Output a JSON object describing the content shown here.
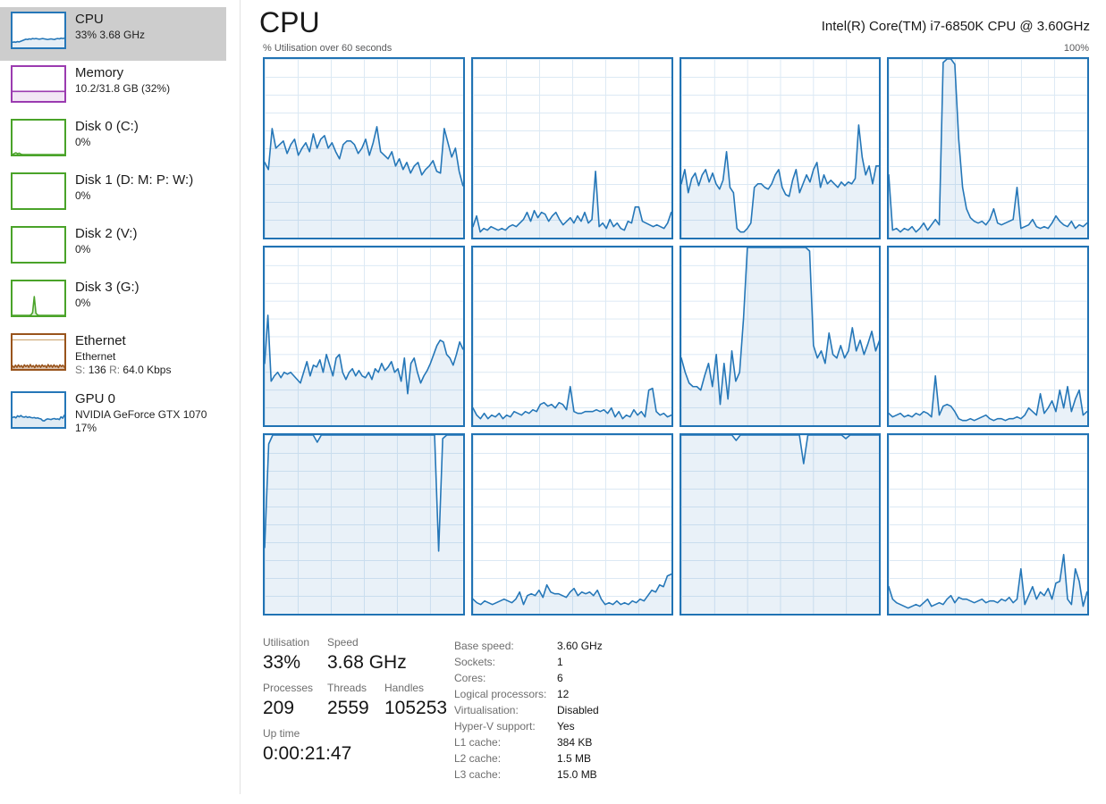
{
  "header": {
    "title": "CPU",
    "subtitle": "Intel(R) Core(TM) i7-6850K CPU @ 3.60GHz"
  },
  "axis": {
    "left_label": "% Utilisation over 60 seconds",
    "right_label": "100%"
  },
  "colors": {
    "chart_blue": "#2577b8",
    "memory_purple": "#9b3bb0",
    "disk_green": "#4aa329",
    "ethernet_brown": "#99541c",
    "ethernet_scale": "#c9a06a",
    "selected_bg": "#cdcdcd"
  },
  "sidebar": {
    "items": [
      {
        "label": "CPU",
        "sub1": "33% 3.68 GHz"
      },
      {
        "label": "Memory",
        "sub1": "10.2/31.8 GB (32%)"
      },
      {
        "label": "Disk 0 (C:)",
        "sub1": "0%"
      },
      {
        "label": "Disk 1 (D: M: P: W:)",
        "sub1": "0%"
      },
      {
        "label": "Disk 2 (V:)",
        "sub1": "0%"
      },
      {
        "label": "Disk 3 (G:)",
        "sub1": "0%"
      },
      {
        "label": "Ethernet",
        "sub1": "Ethernet",
        "throughput": {
          "s_label": "S:",
          "s_value": "136",
          "r_label": "R:",
          "r_value": "64.0 Kbps"
        }
      },
      {
        "label": "GPU 0",
        "sub1": "NVIDIA GeForce GTX 1070",
        "sub2": "17%"
      }
    ]
  },
  "thumbs": {
    "cpu": [
      15,
      16,
      15,
      17,
      16,
      18,
      20,
      22,
      24,
      23,
      25,
      24,
      26,
      25,
      26,
      25,
      24,
      25,
      26,
      25,
      24,
      23,
      24,
      25,
      24,
      23,
      25,
      26,
      25,
      27,
      26,
      27
    ],
    "memory": [
      28,
      28
    ],
    "disk0": [
      0,
      3,
      5,
      2,
      4,
      1,
      0,
      0,
      0,
      0,
      0,
      0,
      0,
      0,
      0,
      0,
      0,
      0,
      0,
      0,
      0,
      0,
      0,
      0,
      0,
      0,
      0,
      0,
      0,
      0,
      0,
      0
    ],
    "disk1": [],
    "disk2": [],
    "disk3": [
      0,
      0,
      0,
      0,
      0,
      0,
      0,
      0,
      0,
      0,
      0,
      1,
      8,
      55,
      6,
      1,
      0,
      0,
      0,
      0,
      0,
      0,
      0,
      0,
      0,
      0,
      0,
      0,
      0,
      0,
      0,
      0
    ],
    "ethernet": [
      9,
      4,
      11,
      5,
      12,
      6,
      10,
      4,
      12,
      7,
      11,
      5,
      13,
      6,
      10,
      4,
      12,
      6,
      11,
      5,
      12,
      7,
      10,
      4,
      13,
      6,
      11,
      5,
      12,
      6,
      10,
      4,
      12,
      7,
      11,
      5
    ],
    "gpu": [
      28,
      30,
      27,
      33,
      30,
      34,
      30,
      29,
      31,
      28,
      30,
      28,
      27,
      28,
      26,
      27,
      25,
      24,
      19,
      18,
      22,
      24,
      23,
      22,
      24,
      25,
      23,
      24,
      22,
      30,
      26,
      35
    ]
  },
  "chart_data": {
    "type": "area",
    "title": "% Utilisation over 60 seconds",
    "x_range_seconds": 60,
    "ylim": [
      0,
      100
    ],
    "grid": true,
    "series": [
      {
        "name": "Logical processor 0",
        "values": [
          42,
          38,
          61,
          50,
          52,
          54,
          47,
          52,
          55,
          46,
          50,
          53,
          48,
          58,
          50,
          55,
          57,
          50,
          53,
          48,
          44,
          52,
          54,
          54,
          52,
          47,
          50,
          55,
          46,
          53,
          62,
          48,
          46,
          44,
          48,
          40,
          44,
          38,
          42,
          36,
          40,
          42,
          35,
          38,
          40,
          43,
          37,
          36,
          61,
          53,
          45,
          50,
          37,
          29
        ]
      },
      {
        "name": "Logical processor 1",
        "values": [
          6,
          12,
          3,
          5,
          4,
          6,
          5,
          4,
          5,
          4,
          6,
          7,
          6,
          8,
          10,
          14,
          9,
          15,
          11,
          14,
          13,
          9,
          12,
          14,
          10,
          7,
          9,
          11,
          8,
          12,
          9,
          14,
          8,
          10,
          37,
          6,
          8,
          5,
          10,
          6,
          8,
          5,
          4,
          9,
          8,
          17,
          17,
          9,
          8,
          7,
          6,
          7,
          6,
          5,
          8,
          14
        ]
      },
      {
        "name": "Logical processor 2",
        "values": [
          30,
          38,
          25,
          33,
          36,
          29,
          35,
          38,
          31,
          36,
          30,
          27,
          32,
          48,
          28,
          25,
          5,
          3,
          3,
          5,
          8,
          28,
          30,
          30,
          28,
          27,
          30,
          35,
          38,
          28,
          24,
          23,
          32,
          38,
          25,
          30,
          35,
          31,
          38,
          42,
          28,
          35,
          30,
          32,
          30,
          28,
          31,
          29,
          31,
          30,
          33,
          63,
          45,
          35,
          40,
          30,
          40,
          40
        ]
      },
      {
        "name": "Logical processor 3",
        "values": [
          35,
          4,
          5,
          3,
          5,
          4,
          6,
          3,
          5,
          8,
          4,
          7,
          10,
          7,
          98,
          100,
          100,
          97,
          55,
          28,
          16,
          11,
          9,
          8,
          9,
          7,
          10,
          16,
          8,
          7,
          8,
          9,
          10,
          28,
          5,
          6,
          7,
          10,
          6,
          5,
          6,
          5,
          8,
          12,
          9,
          7,
          6,
          9,
          5,
          7,
          6,
          8
        ]
      },
      {
        "name": "Logical processor 4",
        "values": [
          35,
          62,
          25,
          28,
          30,
          27,
          30,
          29,
          30,
          28,
          26,
          24,
          30,
          36,
          28,
          34,
          33,
          37,
          30,
          40,
          34,
          28,
          38,
          40,
          30,
          26,
          30,
          32,
          28,
          31,
          28,
          27,
          30,
          26,
          32,
          30,
          35,
          31,
          33,
          36,
          30,
          32,
          25,
          38,
          18,
          35,
          38,
          30,
          24,
          28,
          31,
          35,
          40,
          45,
          48,
          47,
          40,
          38,
          34,
          40,
          47,
          43
        ]
      },
      {
        "name": "Logical processor 5",
        "values": [
          10,
          6,
          4,
          7,
          4,
          6,
          5,
          7,
          4,
          6,
          5,
          8,
          7,
          6,
          8,
          7,
          9,
          8,
          12,
          13,
          11,
          12,
          10,
          13,
          12,
          9,
          22,
          8,
          7,
          7,
          8,
          8,
          8,
          9,
          8,
          9,
          7,
          10,
          5,
          8,
          4,
          6,
          5,
          9,
          6,
          8,
          5,
          20,
          21,
          8,
          6,
          7,
          5,
          6
        ]
      },
      {
        "name": "Logical processor 6",
        "values": [
          38,
          30,
          24,
          22,
          22,
          20,
          28,
          35,
          22,
          40,
          12,
          35,
          15,
          42,
          25,
          30,
          60,
          100,
          100,
          100,
          100,
          100,
          100,
          100,
          100,
          100,
          100,
          100,
          100,
          100,
          100,
          100,
          100,
          98,
          45,
          38,
          42,
          35,
          52,
          40,
          38,
          45,
          38,
          42,
          55,
          42,
          48,
          40,
          46,
          53,
          42,
          48
        ]
      },
      {
        "name": "Logical processor 7",
        "values": [
          7,
          5,
          6,
          7,
          5,
          6,
          5,
          7,
          6,
          8,
          7,
          5,
          28,
          6,
          11,
          12,
          11,
          8,
          4,
          3,
          3,
          4,
          3,
          4,
          5,
          6,
          4,
          3,
          4,
          4,
          3,
          4,
          4,
          5,
          4,
          6,
          10,
          8,
          6,
          18,
          7,
          10,
          14,
          8,
          20,
          10,
          22,
          8,
          15,
          20,
          6,
          8
        ]
      },
      {
        "name": "Logical processor 8",
        "values": [
          37,
          95,
          100,
          100,
          100,
          100,
          100,
          100,
          100,
          100,
          100,
          100,
          100,
          96,
          100,
          100,
          100,
          100,
          100,
          100,
          100,
          100,
          100,
          100,
          100,
          100,
          100,
          100,
          100,
          100,
          100,
          100,
          100,
          100,
          100,
          100,
          100,
          100,
          100,
          100,
          100,
          100,
          100,
          35,
          98,
          100,
          100,
          100,
          100,
          100
        ]
      },
      {
        "name": "Logical processor 9",
        "values": [
          8,
          6,
          5,
          7,
          6,
          5,
          6,
          7,
          8,
          7,
          6,
          8,
          12,
          5,
          10,
          11,
          10,
          13,
          9,
          16,
          12,
          11,
          11,
          10,
          9,
          12,
          14,
          10,
          12,
          11,
          12,
          10,
          13,
          8,
          5,
          6,
          5,
          7,
          5,
          6,
          5,
          7,
          6,
          8,
          7,
          10,
          13,
          12,
          16,
          15,
          21,
          22
        ]
      },
      {
        "name": "Logical processor 10",
        "values": [
          100,
          100,
          100,
          100,
          100,
          100,
          100,
          100,
          100,
          100,
          100,
          100,
          100,
          97,
          100,
          100,
          100,
          100,
          100,
          100,
          100,
          100,
          100,
          100,
          100,
          100,
          100,
          100,
          100,
          84,
          100,
          100,
          100,
          100,
          100,
          100,
          100,
          100,
          100,
          98,
          100,
          100,
          100,
          100,
          100,
          100,
          100,
          100
        ]
      },
      {
        "name": "Logical processor 11",
        "values": [
          15,
          8,
          6,
          5,
          4,
          3,
          4,
          5,
          4,
          6,
          8,
          4,
          5,
          6,
          5,
          8,
          10,
          6,
          9,
          8,
          8,
          7,
          6,
          7,
          8,
          6,
          7,
          7,
          6,
          8,
          7,
          9,
          6,
          8,
          25,
          5,
          10,
          15,
          8,
          12,
          10,
          14,
          8,
          17,
          18,
          33,
          8,
          5,
          25,
          18,
          4,
          12
        ]
      }
    ]
  },
  "stats": {
    "left": [
      {
        "label": "Utilisation",
        "value": "33%"
      },
      {
        "label": "Speed",
        "value": "3.68 GHz"
      },
      {
        "label": "Processes",
        "value": "209"
      },
      {
        "label": "Threads",
        "value": "2559"
      },
      {
        "label": "Handles",
        "value": "105253"
      },
      {
        "label": "Up time",
        "value": "0:00:21:47"
      }
    ],
    "right": [
      {
        "label": "Base speed:",
        "value": "3.60 GHz"
      },
      {
        "label": "Sockets:",
        "value": "1"
      },
      {
        "label": "Cores:",
        "value": "6"
      },
      {
        "label": "Logical processors:",
        "value": "12"
      },
      {
        "label": "Virtualisation:",
        "value": "Disabled"
      },
      {
        "label": "Hyper-V support:",
        "value": "Yes"
      },
      {
        "label": "L1 cache:",
        "value": "384 KB"
      },
      {
        "label": "L2 cache:",
        "value": "1.5 MB"
      },
      {
        "label": "L3 cache:",
        "value": "15.0 MB"
      }
    ]
  }
}
